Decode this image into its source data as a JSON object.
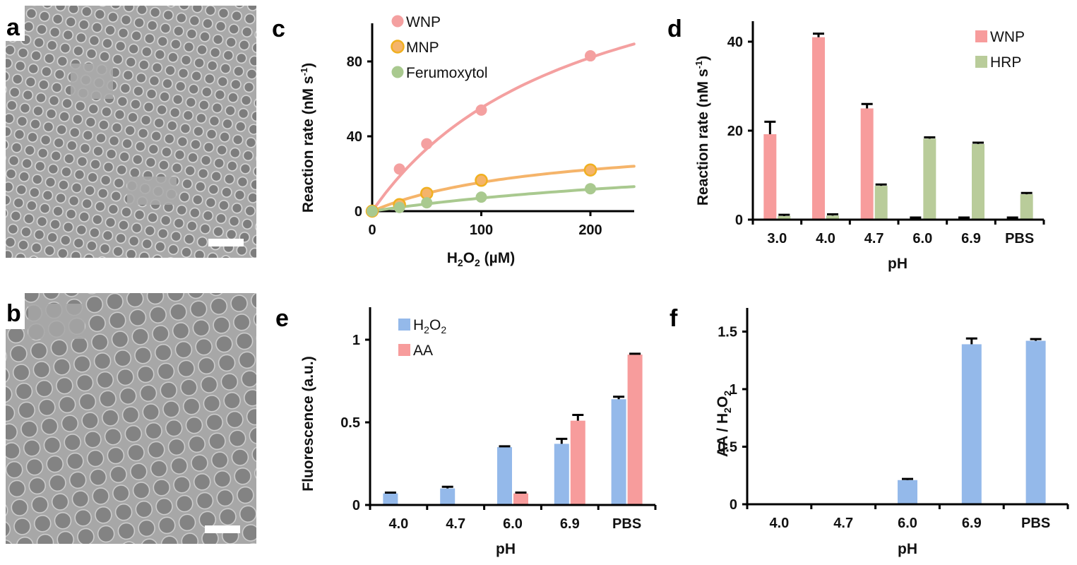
{
  "figure": {
    "panels": {
      "a": {
        "label": "a",
        "type": "TEM micrograph",
        "scale_bar": true
      },
      "b": {
        "label": "b",
        "type": "TEM micrograph",
        "scale_bar": true
      },
      "c": {
        "label": "c"
      },
      "d": {
        "label": "d"
      },
      "e": {
        "label": "e"
      },
      "f": {
        "label": "f"
      }
    }
  },
  "chart_data": [
    {
      "id": "c",
      "type": "scatter",
      "title": "",
      "xlabel": "H2O2 (µM)",
      "xlabel_main": "H",
      "xlabel_sub1": "2",
      "xlabel_mid": "O",
      "xlabel_sub2": "2",
      "xlabel_tail": " (µM)",
      "ylabel": "Reaction rate (nM s-1)",
      "ylabel_main": "Reaction rate (nM s",
      "ylabel_sup": "-1",
      "ylabel_tail": ")",
      "xlim": [
        0,
        240
      ],
      "ylim": [
        0,
        100
      ],
      "xticks": [
        0,
        100,
        200
      ],
      "yticks": [
        0,
        40,
        80
      ],
      "legend_position": "top-left",
      "series": [
        {
          "name": "WNP",
          "color": "#f4a0a0",
          "x": [
            0,
            25,
            50,
            100,
            200
          ],
          "y": [
            0,
            22.5,
            36,
            54,
            83
          ],
          "fit": {
            "model": "michaelis-menten",
            "vmax": 160,
            "km": 190
          }
        },
        {
          "name": "MNP",
          "color": "#f5b46a",
          "edge": "#f0b020",
          "x": [
            0,
            25,
            50,
            100,
            200
          ],
          "y": [
            0,
            3.5,
            9.5,
            16.5,
            22
          ],
          "fit": {
            "model": "michaelis-menten",
            "vmax": 40,
            "km": 160
          }
        },
        {
          "name": "Ferumoxytol",
          "color": "#a9c98f",
          "x": [
            0,
            25,
            50,
            100,
            200
          ],
          "y": [
            0,
            2,
            4.5,
            7.5,
            12
          ],
          "fit": {
            "model": "michaelis-menten",
            "vmax": 35,
            "km": 400
          }
        }
      ]
    },
    {
      "id": "d",
      "type": "bar",
      "xlabel": "pH",
      "ylabel": "Reaction rate (nM s-1)",
      "ylabel_main": "Reaction rate (nM s",
      "ylabel_sup": "-1",
      "ylabel_tail": ")",
      "categories": [
        "3.0",
        "4.0",
        "4.7",
        "6.0",
        "6.9",
        "PBS"
      ],
      "ylim": [
        0,
        45
      ],
      "yticks": [
        0,
        20,
        40
      ],
      "legend_position": "top-right",
      "series": [
        {
          "name": "WNP",
          "color": "#f79c9c",
          "values": [
            19.2,
            41.0,
            25.0,
            0.2,
            0.0,
            0.0
          ],
          "errors": [
            2.8,
            0.8,
            1.0,
            0.2,
            0.1,
            0.1
          ]
        },
        {
          "name": "HRP",
          "color": "#b9cc9a",
          "values": [
            0.8,
            0.9,
            7.6,
            18.2,
            17.0,
            5.7
          ],
          "errors": [
            0.3,
            0.3,
            0.3,
            0.3,
            0.3,
            0.3
          ]
        }
      ]
    },
    {
      "id": "e",
      "type": "bar",
      "xlabel": "pH",
      "ylabel": "Fluorescence (a.u.)",
      "categories": [
        "4.0",
        "4.7",
        "6.0",
        "6.9",
        "PBS"
      ],
      "ylim": [
        0,
        1.2
      ],
      "yticks": [
        "0",
        "0.5",
        "1"
      ],
      "ytick_values": [
        0,
        0.5,
        1
      ],
      "legend_position": "top-left",
      "series": [
        {
          "name": "H2O2",
          "name_main": "H",
          "name_sub1": "2",
          "name_mid": "O",
          "name_sub2": "2",
          "color": "#94b9ea",
          "values": [
            0.07,
            0.1,
            0.35,
            0.37,
            0.64
          ],
          "errors": [
            0.005,
            0.01,
            0.005,
            0.03,
            0.015
          ]
        },
        {
          "name": "AA",
          "color": "#f79c9c",
          "values": [
            0.0,
            0.0,
            0.07,
            0.51,
            0.91
          ],
          "errors": [
            0.0,
            0.0,
            0.005,
            0.035,
            0.005
          ]
        }
      ]
    },
    {
      "id": "f",
      "type": "bar",
      "xlabel": "pH",
      "ylabel": "AA / H2O2",
      "ylabel_main": "AA / H",
      "ylabel_sub1": "2",
      "ylabel_mid": "O",
      "ylabel_sub2": "2",
      "categories": [
        "4.0",
        "4.7",
        "6.0",
        "6.9",
        "PBS"
      ],
      "ylim": [
        0,
        1.7
      ],
      "yticks": [
        "0",
        "0.5",
        "1",
        "1.5"
      ],
      "ytick_values": [
        0,
        0.5,
        1,
        1.5
      ],
      "series": [
        {
          "name": "AA / H2O2",
          "color": "#94b9ea",
          "values": [
            0,
            0,
            0.21,
            1.39,
            1.42
          ],
          "errors": [
            0,
            0,
            0.01,
            0.05,
            0.015
          ]
        }
      ]
    }
  ]
}
